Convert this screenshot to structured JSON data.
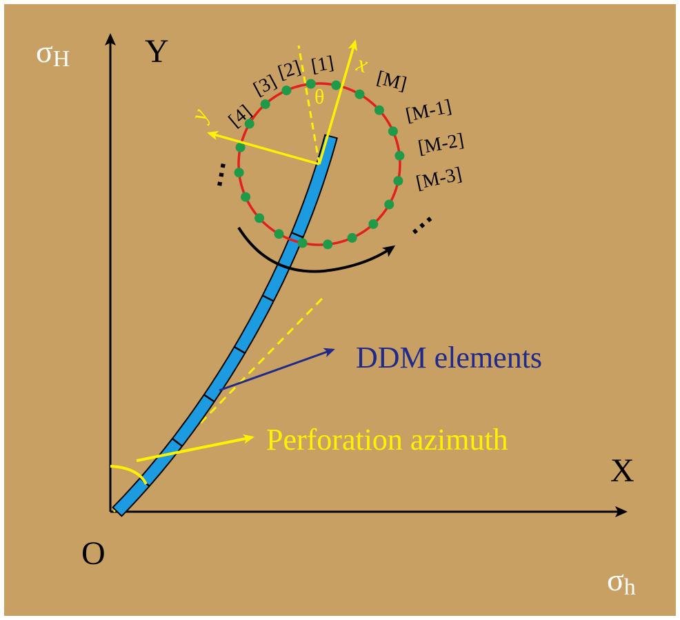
{
  "axes": {
    "y_label": "Y",
    "x_label": "X",
    "origin_label": "O",
    "sigma_H": {
      "symbol": "σ",
      "subscript": "H"
    },
    "sigma_h": {
      "symbol": "σ",
      "subscript": "h"
    }
  },
  "circle": {
    "node_labels": [
      "[1]",
      "[2]",
      "[3]",
      "[4]",
      "[M]",
      "[M-1]",
      "[M-2]",
      "[M-3]"
    ],
    "ellipsis": "⋯"
  },
  "local_axes": {
    "x_label": "x",
    "y_label": "y",
    "theta_label": "θ"
  },
  "annotations": {
    "ddm_elements": "DDM elements",
    "perforation_azimuth": "Perforation azimuth"
  },
  "colors": {
    "background": "#C8A063",
    "frame": "#FFFFFF",
    "axis": "#000000",
    "circle": "#E0201E",
    "node": "#1E9A48",
    "fracture": "#1D9BE0",
    "yellow": "#FFF200",
    "ddm_text": "#1F2A8A",
    "label_text": "#000000"
  }
}
